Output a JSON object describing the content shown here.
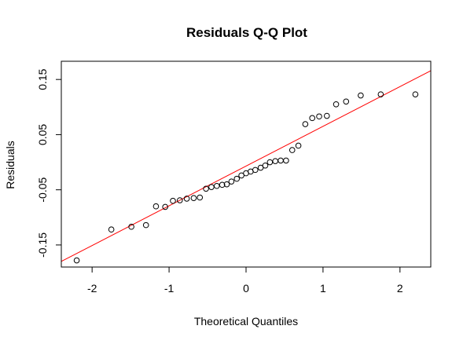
{
  "chart_data": {
    "type": "scatter",
    "title": "Residuals Q-Q Plot",
    "xlabel": "Theoretical Quantiles",
    "ylabel": "Residuals",
    "xlim": [
      -2.4,
      2.4
    ],
    "ylim": [
      -0.19,
      0.183
    ],
    "xticks": [
      {
        "value": -2,
        "label": "-2"
      },
      {
        "value": -1,
        "label": "-1"
      },
      {
        "value": 0,
        "label": "0"
      },
      {
        "value": 1,
        "label": "1"
      },
      {
        "value": 2,
        "label": "2"
      }
    ],
    "yticks": [
      {
        "value": -0.15,
        "label": "-0.15"
      },
      {
        "value": -0.05,
        "label": "-0.05"
      },
      {
        "value": 0.05,
        "label": "0.05"
      },
      {
        "value": 0.15,
        "label": "0.15"
      }
    ],
    "grid": false,
    "points": {
      "x": [
        -2.2,
        -1.75,
        -1.49,
        -1.3,
        -1.17,
        -1.05,
        -0.95,
        -0.86,
        -0.77,
        -0.68,
        -0.6,
        -0.52,
        -0.45,
        -0.38,
        -0.31,
        -0.25,
        -0.19,
        -0.12,
        -0.06,
        0.0,
        0.06,
        0.12,
        0.19,
        0.25,
        0.31,
        0.38,
        0.45,
        0.52,
        0.6,
        0.68,
        0.77,
        0.86,
        0.95,
        1.05,
        1.17,
        1.3,
        1.49,
        1.75,
        2.2
      ],
      "y": [
        -0.178,
        -0.122,
        -0.117,
        -0.114,
        -0.08,
        -0.081,
        -0.07,
        -0.069,
        -0.066,
        -0.065,
        -0.064,
        -0.048,
        -0.045,
        -0.043,
        -0.041,
        -0.04,
        -0.035,
        -0.03,
        -0.024,
        -0.02,
        -0.017,
        -0.014,
        -0.01,
        -0.006,
        0.0,
        0.002,
        0.003,
        0.003,
        0.022,
        0.03,
        0.069,
        0.08,
        0.083,
        0.084,
        0.105,
        0.11,
        0.121,
        0.123,
        0.123
      ],
      "marker": "open-circle",
      "color": "#000000"
    },
    "reference_line": {
      "color": "#ff0000",
      "intercept": -0.007,
      "slope": 0.072
    }
  }
}
